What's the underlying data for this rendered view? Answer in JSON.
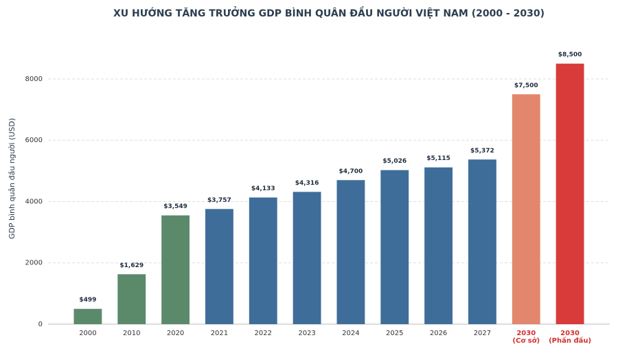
{
  "chart_data": {
    "type": "bar",
    "title": "XU HƯỚNG TĂNG TRƯỞNG GDP BÌNH QUÂN ĐẦU NGƯỜI VIỆT NAM (2000 - 2030)",
    "y_label": "GDP bình quân đầu người (USD)",
    "categories": [
      "2000",
      "2010",
      "2020",
      "2021",
      "2022",
      "2023",
      "2024",
      "2025",
      "2026",
      "2027",
      "2030\n(Cơ sở)",
      "2030\n(Phấn đấu)"
    ],
    "values": [
      499,
      1629,
      3549,
      3757,
      4133,
      4316,
      4700,
      5026,
      5115,
      5372,
      7500,
      8500
    ],
    "value_labels": [
      "$499",
      "$1,629",
      "$3,549",
      "$3,757",
      "$4,133",
      "$4,316",
      "$4,700",
      "$5,026",
      "$5,115",
      "$5,372",
      "$7,500",
      "$8,500"
    ],
    "colors": [
      "#5b8a6b",
      "#5b8a6b",
      "#5b8a6b",
      "#3f6d9a",
      "#3f6d9a",
      "#3f6d9a",
      "#3f6d9a",
      "#3f6d9a",
      "#3f6d9a",
      "#3f6d9a",
      "#e2876d",
      "#d93b3b"
    ],
    "category_colors": [
      "#333333",
      "#333333",
      "#333333",
      "#333333",
      "#333333",
      "#333333",
      "#333333",
      "#333333",
      "#333333",
      "#333333",
      "#d32f2f",
      "#d32f2f"
    ],
    "ylim": [
      0,
      9400
    ],
    "yticks": [
      0,
      2000,
      4000,
      6000,
      8000
    ],
    "grid": true
  }
}
